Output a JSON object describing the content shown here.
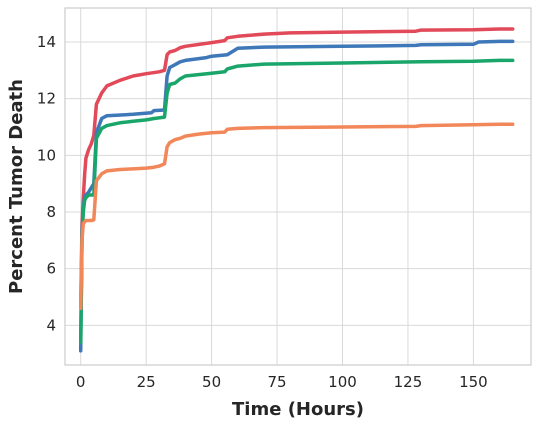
{
  "chart_data": {
    "type": "line",
    "title": "",
    "xlabel": "Time (Hours)",
    "ylabel": "Percent Tumor Death",
    "xlim": [
      -6,
      172
    ],
    "ylim": [
      2.6,
      15.2
    ],
    "xticks": [
      0,
      25,
      50,
      75,
      100,
      125,
      150
    ],
    "yticks": [
      4,
      6,
      8,
      10,
      12,
      14
    ],
    "grid": true,
    "legend": "none",
    "series": [
      {
        "color": "#e24a5a",
        "x": [
          0,
          0.5,
          1,
          1.5,
          2,
          3,
          4,
          5,
          6,
          8,
          10,
          15,
          20,
          25,
          30,
          32,
          33,
          34,
          36,
          38,
          40,
          50,
          55,
          56,
          60,
          70,
          80,
          100,
          128,
          130,
          150,
          160,
          165
        ],
        "y": [
          4.7,
          7.5,
          8.5,
          9.3,
          9.9,
          10.2,
          10.4,
          10.7,
          11.8,
          12.2,
          12.45,
          12.65,
          12.8,
          12.88,
          12.95,
          13.0,
          13.55,
          13.65,
          13.7,
          13.8,
          13.85,
          13.98,
          14.05,
          14.15,
          14.2,
          14.28,
          14.32,
          14.35,
          14.38,
          14.42,
          14.43,
          14.46,
          14.46
        ]
      },
      {
        "color": "#3e78b8",
        "x": [
          0,
          0.5,
          1,
          1.5,
          2,
          3,
          5,
          6,
          8,
          10,
          20,
          27,
          28,
          32,
          33,
          34,
          36,
          38,
          40,
          48,
          50,
          56,
          60,
          70,
          100,
          128,
          130,
          150,
          152,
          160,
          165
        ],
        "y": [
          3.1,
          7.2,
          8.2,
          8.5,
          8.6,
          8.7,
          9.0,
          10.8,
          11.3,
          11.4,
          11.45,
          11.5,
          11.58,
          11.6,
          12.8,
          13.1,
          13.2,
          13.3,
          13.35,
          13.45,
          13.5,
          13.55,
          13.78,
          13.82,
          13.85,
          13.88,
          13.9,
          13.92,
          14.0,
          14.02,
          14.02
        ]
      },
      {
        "color": "#1aa66a",
        "x": [
          0,
          0.5,
          1,
          1.5,
          2,
          3,
          5,
          6,
          8,
          10,
          15,
          20,
          25,
          28,
          32,
          33,
          34,
          36,
          38,
          40,
          50,
          55,
          56,
          58,
          60,
          70,
          100,
          130,
          150,
          160,
          165
        ],
        "y": [
          3.4,
          7.0,
          8.0,
          8.4,
          8.5,
          8.6,
          8.6,
          10.6,
          10.95,
          11.05,
          11.15,
          11.2,
          11.25,
          11.3,
          11.35,
          12.2,
          12.5,
          12.55,
          12.7,
          12.8,
          12.9,
          12.95,
          13.05,
          13.1,
          13.15,
          13.22,
          13.26,
          13.3,
          13.32,
          13.35,
          13.35
        ]
      },
      {
        "color": "#f2875a",
        "x": [
          0,
          0.5,
          1,
          1.5,
          2,
          3,
          4,
          5,
          6,
          8,
          10,
          15,
          20,
          25,
          28,
          30,
          32,
          33,
          34,
          36,
          38,
          40,
          45,
          50,
          55,
          56,
          60,
          70,
          100,
          128,
          130,
          150,
          160,
          165
        ],
        "y": [
          4.6,
          7.0,
          7.6,
          7.65,
          7.7,
          7.7,
          7.7,
          7.72,
          9.1,
          9.35,
          9.45,
          9.5,
          9.52,
          9.55,
          9.58,
          9.62,
          9.7,
          10.3,
          10.45,
          10.55,
          10.6,
          10.68,
          10.75,
          10.8,
          10.82,
          10.92,
          10.95,
          10.98,
          11.0,
          11.02,
          11.05,
          11.08,
          11.1,
          11.1
        ]
      }
    ]
  }
}
